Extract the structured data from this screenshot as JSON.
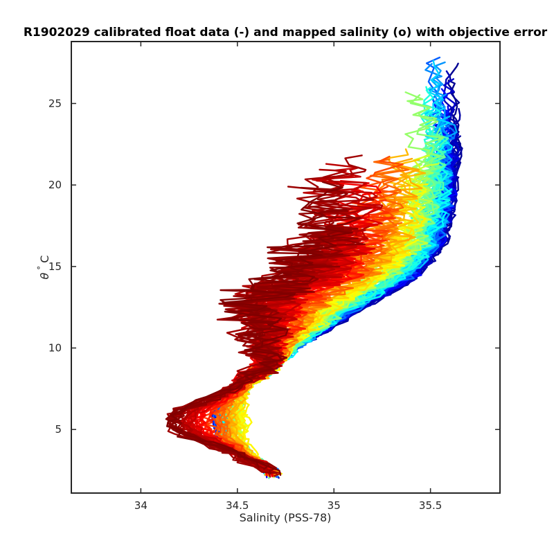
{
  "chart_data": {
    "type": "line",
    "title": "R1902029 calibrated float data (-) and mapped salinity (o) with objective error",
    "xlabel": "Salinity (PSS-78)",
    "ylabel_symbol": "θ",
    "ylabel_degree": "°",
    "ylabel_unit": "C",
    "xlim": [
      33.64,
      35.86
    ],
    "ylim": [
      1.1,
      28.8
    ],
    "x_ticks": [
      34,
      34.5,
      35,
      35.5
    ],
    "x_tick_labels": [
      "34",
      "34.5",
      "35",
      "35.5"
    ],
    "y_ticks": [
      5,
      10,
      15,
      20,
      25
    ],
    "y_tick_labels": [
      "5",
      "10",
      "15",
      "20",
      "25"
    ],
    "grid": false,
    "legend": "none",
    "colormap": "jet",
    "colormap_stops": [
      "#00008f",
      "#0000ff",
      "#00ffff",
      "#ffff00",
      "#ff0000",
      "#800000"
    ],
    "series_count": 140,
    "profile_shape": {
      "points": [
        {
          "s": 35.6,
          "t": 25.5
        },
        {
          "s": 35.62,
          "t": 22.0
        },
        {
          "s": 35.6,
          "t": 19.0
        },
        {
          "s": 35.55,
          "t": 16.5
        },
        {
          "s": 35.42,
          "t": 14.5
        },
        {
          "s": 35.1,
          "t": 12.3
        },
        {
          "s": 34.78,
          "t": 10.0
        },
        {
          "s": 34.55,
          "t": 8.0
        },
        {
          "s": 34.4,
          "t": 6.0
        },
        {
          "s": 34.42,
          "t": 4.6
        },
        {
          "s": 34.55,
          "t": 3.3
        },
        {
          "s": 34.68,
          "t": 2.4
        }
      ]
    },
    "fresh_shift_by_colour": [
      0.0,
      -0.02,
      -0.05,
      -0.12,
      -0.28,
      -0.42
    ],
    "intermediate_min_by_colour": [
      0.0,
      0.0,
      0.05,
      0.12,
      -0.1,
      -0.28
    ],
    "top_temp_range": [
      15.0,
      28.0
    ],
    "deep_end_temp": [
      2.1,
      3.0
    ]
  }
}
